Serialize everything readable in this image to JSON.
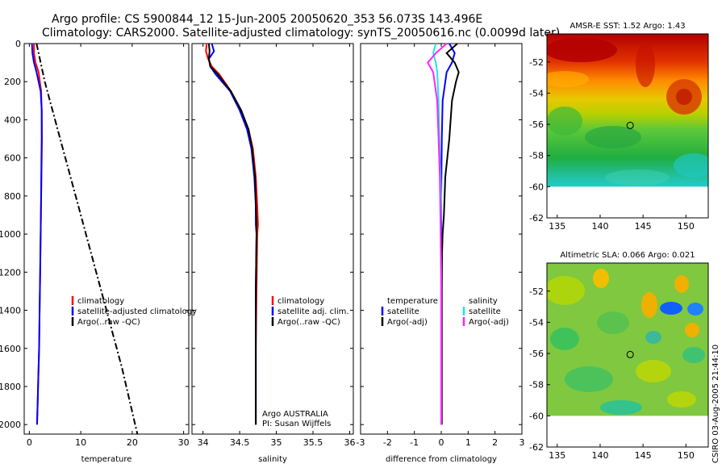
{
  "header": {
    "line1": "Argo profile: CS 5900844_12 15-Jun-2005 20050620_353 56.073S 143.496E",
    "line2": "Climatology: CARS2000. Satellite-adjusted climatology: synTS_20050616.nc (0.0099d later)"
  },
  "colors": {
    "red": "#ff0000",
    "blue": "#0000ff",
    "black": "#000000",
    "cyan": "#22e6e6",
    "magenta": "#ff22ff"
  },
  "chart_data": [
    {
      "type": "line",
      "title": "",
      "xlabel": "temperature",
      "ylabel": "",
      "xlim": [
        -1,
        31
      ],
      "ylim": [
        2050,
        0
      ],
      "xticks": [
        0,
        10,
        20,
        30
      ],
      "yticks": [
        0,
        200,
        400,
        600,
        800,
        1000,
        1200,
        1400,
        1600,
        1800,
        2000
      ],
      "legend_position": "right-middle",
      "series": [
        {
          "name": "climatology",
          "color": "red",
          "dash": "solid",
          "x": [
            0.9,
            0.9,
            1.2,
            1.8,
            2.3,
            2.4,
            2.45,
            2.4,
            2.3,
            2.2,
            2.1,
            2.0,
            1.9,
            1.7,
            1.6,
            1.5
          ],
          "y": [
            0,
            50,
            100,
            150,
            250,
            350,
            500,
            600,
            800,
            1000,
            1200,
            1400,
            1600,
            1800,
            1900,
            2000
          ]
        },
        {
          "name": "satellite-adjusted climatology",
          "color": "blue",
          "dash": "solid",
          "x": [
            0.5,
            0.6,
            0.9,
            1.4,
            2.2,
            2.4,
            2.4,
            2.35,
            2.3,
            2.2,
            2.1,
            2.0,
            1.9,
            1.7,
            1.6,
            1.5
          ],
          "y": [
            0,
            50,
            100,
            150,
            250,
            350,
            500,
            600,
            800,
            1000,
            1200,
            1400,
            1600,
            1800,
            1900,
            2000
          ]
        },
        {
          "name": "Argo(..raw -QC)",
          "color": "black",
          "dash": "dashdot",
          "x": [
            1.4,
            3.0,
            6.0,
            9.0,
            12.0,
            15.0,
            18.0,
            21.0
          ],
          "y": [
            0,
            200,
            500,
            800,
            1100,
            1400,
            1700,
            2050
          ]
        }
      ]
    },
    {
      "type": "line",
      "title": "",
      "xlabel": "salinity",
      "ylabel": "",
      "xlim": [
        33.85,
        36.05
      ],
      "ylim": [
        2050,
        0
      ],
      "xticks": [
        34,
        34.5,
        35,
        35.5,
        36
      ],
      "legend_position": "right-middle",
      "annotations": [
        "Argo AUSTRALIA",
        "PI: Susan Wijffels"
      ],
      "series": [
        {
          "name": "climatology",
          "color": "red",
          "dash": "solid",
          "x": [
            34.05,
            34.04,
            34.07,
            34.12,
            34.22,
            34.38,
            34.52,
            34.62,
            34.68,
            34.72,
            34.74,
            34.75,
            34.74,
            34.73,
            34.72,
            34.72,
            34.72
          ],
          "y": [
            0,
            40,
            80,
            120,
            160,
            250,
            350,
            450,
            550,
            700,
            850,
            950,
            1000,
            1300,
            1600,
            1900,
            2000
          ]
        },
        {
          "name": "satellite adj. clim.",
          "color": "blue",
          "dash": "solid",
          "x": [
            34.12,
            34.15,
            34.08,
            34.1,
            34.17,
            34.37,
            34.5,
            34.6,
            34.66,
            34.7,
            34.72,
            34.72,
            34.73,
            34.72,
            34.72,
            34.72,
            34.72
          ],
          "y": [
            0,
            40,
            80,
            120,
            160,
            250,
            350,
            450,
            550,
            700,
            850,
            950,
            1000,
            1300,
            1600,
            1900,
            2000
          ]
        },
        {
          "name": "Argo(..raw -QC)",
          "color": "black",
          "dash": "solid",
          "x": [
            34.08,
            34.09,
            34.08,
            34.1,
            34.2,
            34.38,
            34.52,
            34.62,
            34.67,
            34.71,
            34.72,
            34.73,
            34.73,
            34.72,
            34.72,
            34.72,
            34.72
          ],
          "y": [
            0,
            40,
            80,
            120,
            160,
            250,
            350,
            450,
            550,
            700,
            850,
            950,
            1000,
            1300,
            1600,
            1900,
            2000
          ]
        }
      ]
    },
    {
      "type": "line",
      "title": "",
      "xlabel": "difference from climatology",
      "ylabel": "",
      "xlim": [
        -3,
        3
      ],
      "ylim": [
        2050,
        0
      ],
      "xticks": [
        -3,
        -2,
        -1,
        0,
        1,
        2,
        3
      ],
      "legend_position": "right-middle",
      "legend_headers": [
        "temperature",
        "salinity"
      ],
      "series": [
        {
          "name": "satellite",
          "group": "temperature",
          "color": "blue",
          "dash": "solid",
          "x": [
            0.3,
            0.5,
            0.4,
            0.2,
            0.05,
            0.02,
            0.0,
            0.0,
            0.0,
            0.0
          ],
          "y": [
            0,
            50,
            100,
            150,
            300,
            500,
            800,
            1200,
            1600,
            2000
          ]
        },
        {
          "name": "Argo(-adj)",
          "group": "temperature",
          "color": "black",
          "dash": "solid",
          "x": [
            0.6,
            0.2,
            0.5,
            0.65,
            0.55,
            0.4,
            0.3,
            0.15,
            0.1,
            0.05,
            0.03,
            0.02,
            0.02,
            0.02,
            0.02
          ],
          "y": [
            0,
            50,
            100,
            150,
            200,
            300,
            500,
            700,
            900,
            1000,
            1100,
            1300,
            1600,
            1900,
            2000
          ]
        },
        {
          "name": "satellite",
          "group": "salinity",
          "color": "cyan",
          "dash": "solid",
          "x": [
            -0.2,
            -0.3,
            -0.2,
            -0.15,
            -0.1,
            -0.05,
            0.0,
            -0.02,
            0.0,
            0.0,
            0.0,
            0.0
          ],
          "y": [
            0,
            50,
            100,
            150,
            300,
            600,
            800,
            1000,
            1200,
            1500,
            1800,
            2000
          ]
        },
        {
          "name": "Argo(-adj)",
          "group": "salinity",
          "color": "magenta",
          "dash": "solid",
          "x": [
            0.2,
            -0.2,
            -0.5,
            -0.3,
            -0.15,
            -0.1,
            -0.05,
            -0.02,
            0.0,
            0.0,
            0.0
          ],
          "y": [
            0,
            50,
            100,
            150,
            300,
            500,
            700,
            1000,
            1300,
            1600,
            2000
          ]
        }
      ]
    },
    {
      "type": "heatmap",
      "title": "AMSR-E SST: 1.52 Argo: 1.43",
      "xlim": [
        133.8,
        152.6
      ],
      "ylim": [
        -62,
        -50.2
      ],
      "xticks": [
        135,
        140,
        145,
        150
      ],
      "yticks": [
        -52,
        -54,
        -56,
        -58,
        -60,
        -62
      ],
      "data_extent": {
        "lon": [
          133.8,
          152.6
        ],
        "lat": [
          -60,
          -50.2
        ]
      },
      "marker": {
        "lon": 143.5,
        "lat": -56.07
      }
    },
    {
      "type": "heatmap",
      "title": "Altimetric SLA: 0.066 Argo: 0.021",
      "xlim": [
        133.8,
        152.6
      ],
      "ylim": [
        -62,
        -50.2
      ],
      "xticks": [
        135,
        140,
        145,
        150
      ],
      "yticks": [
        -52,
        -54,
        -56,
        -58,
        -60,
        -62
      ],
      "data_extent": {
        "lon": [
          133.8,
          152.6
        ],
        "lat": [
          -60,
          -50.2
        ]
      },
      "marker": {
        "lon": 143.5,
        "lat": -56.07
      }
    }
  ],
  "footer": {
    "stamp": "CSIRO 03-Aug-2005 21:44:10"
  }
}
